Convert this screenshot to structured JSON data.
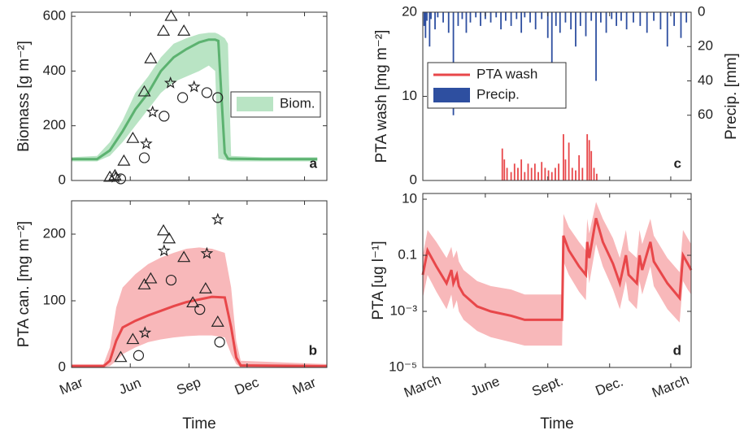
{
  "chart_data": [
    {
      "type": "line",
      "panel_label": "a",
      "ylabel": "Biomass [g m⁻²]",
      "xlim": [
        0,
        400
      ],
      "xticks": [
        0,
        92,
        184,
        275,
        365
      ],
      "ylim": [
        0,
        615
      ],
      "yticks": [
        0,
        200,
        400,
        600
      ],
      "legend": "right",
      "band": {
        "name": "Biom.",
        "color": "#b9e4c4",
        "x": [
          0,
          40,
          60,
          80,
          100,
          120,
          140,
          160,
          180,
          200,
          215,
          225,
          230,
          240,
          245,
          250,
          300,
          385
        ],
        "upper": [
          85,
          90,
          140,
          220,
          320,
          380,
          450,
          500,
          520,
          535,
          540,
          540,
          535,
          520,
          500,
          90,
          85,
          85
        ],
        "lower": [
          70,
          70,
          90,
          140,
          200,
          260,
          320,
          360,
          380,
          400,
          420,
          400,
          80,
          75,
          72,
          70,
          70,
          70
        ]
      },
      "series": [
        {
          "color": "#5cb270",
          "x": [
            0,
            40,
            60,
            80,
            100,
            120,
            140,
            160,
            180,
            200,
            215,
            225,
            230,
            235,
            240,
            245,
            300,
            385
          ],
          "values": [
            78,
            78,
            110,
            180,
            260,
            320,
            400,
            450,
            480,
            505,
            515,
            515,
            510,
            300,
            100,
            80,
            78,
            78
          ]
        }
      ],
      "markers": [
        {
          "shape": "triangle",
          "x": [
            60,
            68,
            82,
            96,
            114,
            124,
            144,
            156,
            176
          ],
          "y": [
            12,
            18,
            71,
            154,
            324,
            445,
            546,
            600,
            546
          ]
        },
        {
          "shape": "star",
          "x": [
            69,
            117,
            127,
            155,
            192
          ],
          "y": [
            12,
            134,
            250,
            356,
            342
          ]
        },
        {
          "shape": "circle",
          "x": [
            77,
            114,
            145,
            174,
            212,
            229
          ],
          "y": [
            6,
            83,
            235,
            303,
            321,
            303
          ]
        }
      ]
    },
    {
      "type": "line",
      "panel_label": "b",
      "ylabel": "PTA can. [mg m⁻²]",
      "xlabel": "Time",
      "xlim": [
        0,
        400
      ],
      "xticks": [
        {
          "value": 0,
          "label": "Mar"
        },
        {
          "value": 92,
          "label": "Jun"
        },
        {
          "value": 184,
          "label": "Sep"
        },
        {
          "value": 275,
          "label": "Dec"
        },
        {
          "value": 365,
          "label": "Mar"
        }
      ],
      "ylim": [
        0,
        250
      ],
      "yticks": [
        0,
        100,
        200
      ],
      "band": {
        "color": "#f8b8ba",
        "x": [
          0,
          50,
          60,
          70,
          80,
          100,
          120,
          140,
          160,
          180,
          200,
          220,
          240,
          250,
          258,
          265,
          400
        ],
        "upper": [
          5,
          5,
          30,
          90,
          120,
          140,
          155,
          165,
          172,
          178,
          180,
          178,
          172,
          120,
          40,
          10,
          5
        ],
        "lower": [
          0,
          0,
          2,
          10,
          20,
          30,
          38,
          42,
          45,
          47,
          48,
          48,
          45,
          20,
          5,
          0,
          0
        ]
      },
      "series": [
        {
          "color": "#e8474a",
          "x": [
            0,
            50,
            60,
            70,
            80,
            100,
            120,
            140,
            160,
            180,
            200,
            220,
            240,
            250,
            258,
            265,
            400
          ],
          "values": [
            2,
            2,
            10,
            40,
            60,
            70,
            78,
            85,
            92,
            98,
            102,
            106,
            105,
            60,
            15,
            3,
            2
          ]
        }
      ],
      "markers": [
        {
          "shape": "triangle",
          "x": [
            77,
            96,
            114,
            124,
            144,
            153,
            176,
            210,
            190,
            229
          ],
          "y": [
            15,
            42,
            124,
            133,
            205,
            193,
            165,
            118,
            97,
            68
          ]
        },
        {
          "shape": "star",
          "x": [
            115,
            145,
            212,
            229
          ],
          "y": [
            52,
            175,
            171,
            222
          ]
        },
        {
          "shape": "circle",
          "x": [
            105,
            156,
            201,
            232
          ],
          "y": [
            18,
            131,
            87,
            38
          ]
        }
      ]
    },
    {
      "type": "bar",
      "panel_label": "c",
      "ylabel": "PTA wash [mg m⁻²]",
      "y2label": "Precip. [mm]",
      "xlim": [
        0,
        395
      ],
      "xticks": [
        0,
        92,
        184,
        275,
        365
      ],
      "ylim": [
        0,
        20
      ],
      "yticks": [
        0,
        10,
        20
      ],
      "y2lim": [
        98,
        0
      ],
      "y2ticks": [
        0,
        20,
        40,
        60
      ],
      "legend": "upper left",
      "series": [
        {
          "name": "PTA wash",
          "color": "#e8474a",
          "legend_symbol": "line",
          "x": [
            117,
            120,
            124,
            130,
            135,
            140,
            145,
            150,
            155,
            160,
            165,
            170,
            175,
            180,
            185,
            190,
            195,
            200,
            207,
            210,
            215,
            220,
            225,
            230,
            235,
            242,
            245,
            248,
            252,
            256
          ],
          "values": [
            3.8,
            2.5,
            1.5,
            1,
            2,
            1.5,
            2.5,
            1,
            2,
            1.5,
            2,
            1,
            2.2,
            1.5,
            1.2,
            1,
            1.5,
            2,
            5.5,
            2.5,
            4.5,
            1.5,
            1.2,
            3,
            1.5,
            5.5,
            4.8,
            3.5,
            1.5,
            0.8
          ]
        },
        {
          "name": "Precip.",
          "color": "#2e4fa0",
          "axis": "y2",
          "legend_symbol": "patch",
          "x": [
            2,
            4,
            6,
            10,
            12,
            18,
            22,
            30,
            38,
            45,
            52,
            58,
            64,
            70,
            78,
            85,
            92,
            100,
            108,
            115,
            122,
            130,
            138,
            145,
            150,
            158,
            166,
            175,
            184,
            190,
            196,
            202,
            210,
            218,
            225,
            232,
            240,
            248,
            255,
            262,
            270,
            278,
            285,
            292,
            300,
            310,
            320,
            330,
            340,
            350,
            360,
            370,
            380,
            388
          ],
          "values": [
            8,
            15,
            5,
            20,
            4,
            10,
            3,
            6,
            12,
            60,
            8,
            4,
            12,
            6,
            3,
            8,
            4,
            6,
            3,
            10,
            5,
            8,
            4,
            12,
            3,
            6,
            10,
            4,
            15,
            30,
            8,
            12,
            6,
            10,
            20,
            8,
            14,
            5,
            40,
            6,
            12,
            4,
            8,
            5,
            10,
            6,
            8,
            12,
            5,
            10,
            20,
            8,
            15,
            6
          ]
        }
      ]
    },
    {
      "type": "line",
      "panel_label": "d",
      "ylabel": "PTA [ug l⁻¹]",
      "xlabel": "Time",
      "yscale": "log",
      "xlim": [
        0,
        395
      ],
      "xticks": [
        {
          "value": 0,
          "label": "March"
        },
        {
          "value": 92,
          "label": "June"
        },
        {
          "value": 184,
          "label": "Sept."
        },
        {
          "value": 275,
          "label": "Dec."
        },
        {
          "value": 365,
          "label": "March"
        }
      ],
      "ylim": [
        1e-05,
        16
      ],
      "yticks": [
        {
          "value": 1e-05,
          "label": "10⁻⁵"
        },
        {
          "value": 0.001,
          "label": "10⁻³"
        },
        0.1,
        10
      ],
      "band": {
        "color": "#f8b8ba",
        "upper": [
          0.1,
          0.8,
          0.3,
          0.08,
          0.2,
          0.08,
          0.15,
          0.06,
          0.03,
          0.012,
          0.008,
          0.006,
          0.004,
          0.004,
          0.004,
          3,
          1,
          0.3,
          0.15,
          2,
          0.6,
          8,
          2,
          0.4,
          0.08,
          0.8,
          0.15,
          0.08,
          0.8,
          0.25,
          2,
          0.5,
          0.08,
          0.025,
          0.8,
          0.4,
          0.25
        ],
        "lower": [
          0.003,
          0.02,
          0.005,
          0.0012,
          0.004,
          0.0012,
          0.0025,
          0.001,
          0.0005,
          0.0002,
          0.00012,
          8e-05,
          6e-05,
          6e-05,
          6e-05,
          0.06,
          0.02,
          0.005,
          0.0025,
          0.04,
          0.01,
          0.25,
          0.04,
          0.006,
          0.0012,
          0.012,
          0.0025,
          0.0012,
          0.012,
          0.004,
          0.04,
          0.008,
          0.0012,
          0.0004,
          0.012,
          0.006,
          0.004
        ]
      },
      "series": [
        {
          "color": "#e8474a",
          "x": [
            0,
            7,
            20,
            35,
            42,
            45,
            50,
            53,
            60,
            80,
            100,
            130,
            150,
            180,
            205,
            207,
            215,
            230,
            240,
            242,
            245,
            255,
            265,
            280,
            290,
            299,
            303,
            315,
            319,
            323,
            335,
            340,
            360,
            378,
            383,
            390,
            395
          ],
          "values": [
            0.02,
            0.15,
            0.04,
            0.01,
            0.03,
            0.01,
            0.02,
            0.008,
            0.004,
            0.0015,
            0.001,
            0.0007,
            0.0005,
            0.0005,
            0.0005,
            0.5,
            0.15,
            0.04,
            0.02,
            0.3,
            0.08,
            2.1,
            0.3,
            0.05,
            0.01,
            0.1,
            0.02,
            0.01,
            0.1,
            0.03,
            0.3,
            0.06,
            0.01,
            0.003,
            0.1,
            0.05,
            0.03
          ]
        }
      ]
    }
  ]
}
